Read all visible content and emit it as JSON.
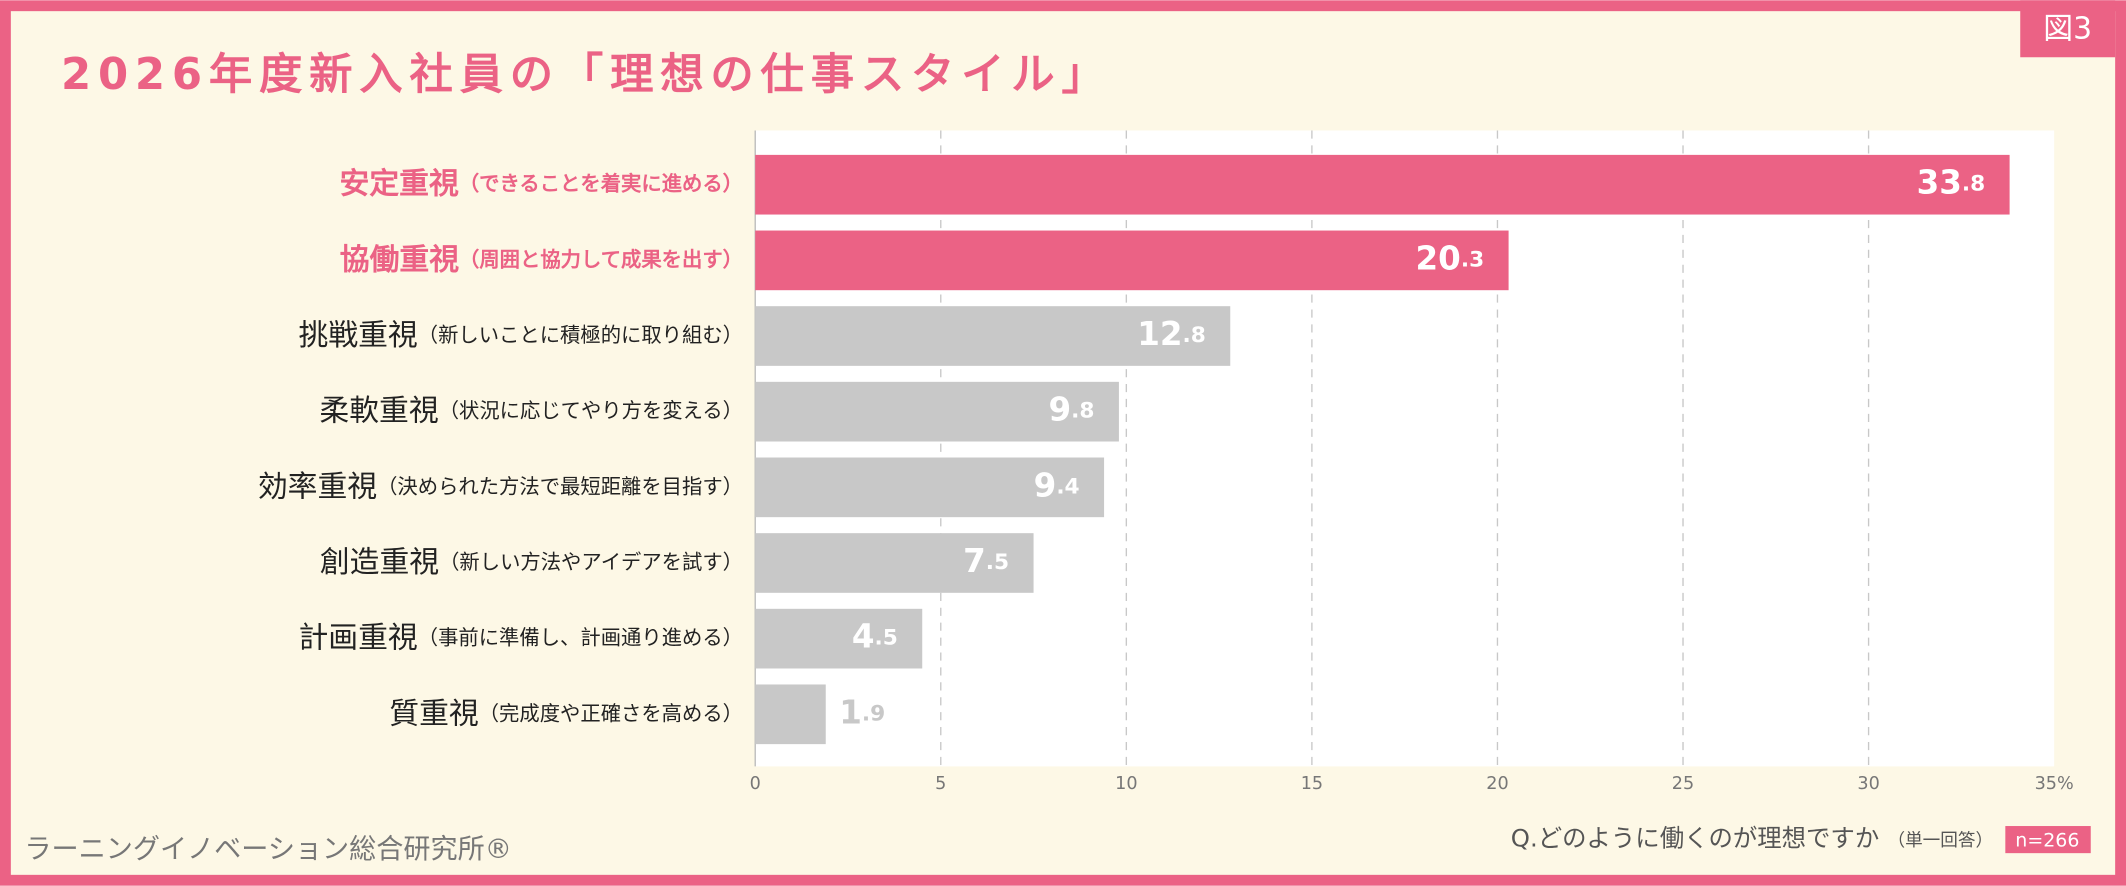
{
  "figure_tag": "図3",
  "chart_data": {
    "type": "bar",
    "title": "2026年度新入社員の「理想の仕事スタイル」",
    "categories": [
      "安定重視",
      "協働重視",
      "挑戦重視",
      "柔軟重視",
      "効率重視",
      "創造重視",
      "計画重視",
      "質重視"
    ],
    "category_notes": [
      "（できることを着実に進める）",
      "（周囲と協力して成果を出す）",
      "（新しいことに積極的に取り組む）",
      "（状況に応じてやり方を変える）",
      "（決められた方法で最短距離を目指す）",
      "（新しい方法やアイデアを試す）",
      "（事前に準備し、計画通り進める）",
      "（完成度や正確さを高める）"
    ],
    "values": [
      33.8,
      20.3,
      12.8,
      9.8,
      9.4,
      7.5,
      4.5,
      1.9
    ],
    "colors": [
      "#eb6285",
      "#eb6285",
      "#c8c8c8",
      "#c8c8c8",
      "#c8c8c8",
      "#c8c8c8",
      "#c8c8c8",
      "#c8c8c8"
    ],
    "highlight_color": "#eb6285",
    "xlim": [
      0,
      35
    ],
    "xticks": [
      0,
      5,
      10,
      15,
      20,
      25,
      30,
      {
        "value": 35,
        "label": "35%"
      }
    ],
    "grid": true,
    "question": "Q.どのように働くのが理想ですか",
    "question_note": "（単一回答）",
    "sample_size": "n=266"
  },
  "publisher": "ラーニングイノベーション総合研究所®"
}
